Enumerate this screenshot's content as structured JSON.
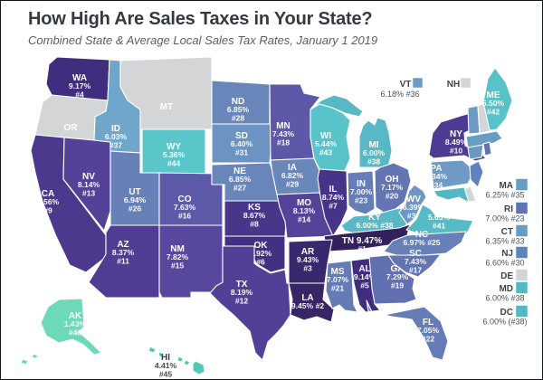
{
  "header": {
    "title": "How High Are Sales Taxes in Your State?",
    "subtitle": "Combined State & Average Local Sales Tax Rates, January 1 2019"
  },
  "palette": {
    "background": "#ffffff",
    "frame_border": "#14171a",
    "title_color": "#343a40",
    "subtitle_color": "#5a6066",
    "no_tax_gray": "#d3d5d6",
    "map_label_light": "#ffffff",
    "map_label_dark": "#3d4449",
    "state_border": "#ffffff"
  },
  "chart_data": {
    "type": "choropleth",
    "metric": "Combined state & average local sales tax rate",
    "date": "January 1 2019",
    "color_scale_hint": "dark purple = highest rate, teal = lowest, gray = no state sales tax",
    "states": [
      {
        "abbr": "WA",
        "rate_pct": 9.17,
        "rank": 4,
        "color": "#412d7e",
        "map_label": [
          "WA",
          "9.17%",
          "#4"
        ],
        "label_color": "light"
      },
      {
        "abbr": "OR",
        "rate_pct": null,
        "rank": null,
        "color": "#d3d5d6",
        "map_label": [
          "OR"
        ],
        "label_color": "light"
      },
      {
        "abbr": "CA",
        "rate_pct": 8.56,
        "rank": 9,
        "color": "#4c388d",
        "map_label": [
          "CA",
          "8.56%",
          "#9"
        ],
        "label_color": "light"
      },
      {
        "abbr": "NV",
        "rate_pct": 8.14,
        "rank": 13,
        "color": "#534298",
        "map_label": [
          "NV",
          "8.14%",
          "#13"
        ],
        "label_color": "light"
      },
      {
        "abbr": "ID",
        "rate_pct": 6.03,
        "rank": 37,
        "color": "#71a6cb",
        "map_label": [
          "ID",
          "6.03%",
          "#37"
        ],
        "label_color": "light"
      },
      {
        "abbr": "MT",
        "rate_pct": null,
        "rank": null,
        "color": "#d3d5d6",
        "map_label": [
          "MT"
        ],
        "label_color": "light"
      },
      {
        "abbr": "WY",
        "rate_pct": 5.36,
        "rank": 44,
        "color": "#59c6ca",
        "map_label": [
          "WY",
          "5.36%",
          "#44"
        ],
        "label_color": "light"
      },
      {
        "abbr": "UT",
        "rate_pct": 6.94,
        "rank": 26,
        "color": "#6781b8",
        "map_label": [
          "UT",
          "6.94%",
          "#26"
        ],
        "label_color": "light"
      },
      {
        "abbr": "CO",
        "rate_pct": 7.63,
        "rank": 16,
        "color": "#5c5aa9",
        "map_label": [
          "CO",
          "7.63%",
          "#16"
        ],
        "label_color": "light"
      },
      {
        "abbr": "AZ",
        "rate_pct": 8.37,
        "rank": 11,
        "color": "#503d93",
        "map_label": [
          "AZ",
          "8.37%",
          "#11"
        ],
        "label_color": "light"
      },
      {
        "abbr": "NM",
        "rate_pct": 7.82,
        "rank": 15,
        "color": "#58489d",
        "map_label": [
          "NM",
          "7.82%",
          "#15"
        ],
        "label_color": "light"
      },
      {
        "abbr": "ND",
        "rate_pct": 6.85,
        "rank": 28,
        "color": "#6986ba",
        "map_label": [
          "ND",
          "6.85%",
          "#28"
        ],
        "label_color": "light"
      },
      {
        "abbr": "SD",
        "rate_pct": 6.4,
        "rank": 31,
        "color": "#6d93c2",
        "map_label": [
          "SD",
          "6.40%",
          "#31"
        ],
        "label_color": "light"
      },
      {
        "abbr": "NE",
        "rate_pct": 6.85,
        "rank": 27,
        "color": "#6986ba",
        "map_label": [
          "NE",
          "6.85%",
          "#27"
        ],
        "label_color": "light"
      },
      {
        "abbr": "KS",
        "rate_pct": 8.67,
        "rank": 8,
        "color": "#49368a",
        "map_label": [
          "KS",
          "8.67%",
          "#8"
        ],
        "label_color": "light"
      },
      {
        "abbr": "OK",
        "rate_pct": 8.92,
        "rank": 6,
        "color": "#443082",
        "map_label": [
          "OK",
          "8.92%",
          "#6"
        ],
        "label_color": "light"
      },
      {
        "abbr": "TX",
        "rate_pct": 8.19,
        "rank": 12,
        "color": "#524097",
        "map_label": [
          "TX",
          "8.19%",
          "#12"
        ],
        "label_color": "light"
      },
      {
        "abbr": "MN",
        "rate_pct": 7.43,
        "rank": 18,
        "color": "#5d58a8",
        "map_label": [
          "MN",
          "7.43%",
          "#18"
        ],
        "label_color": "light"
      },
      {
        "abbr": "WI",
        "rate_pct": 5.44,
        "rank": 43,
        "color": "#58c4c9",
        "map_label": [
          "WI",
          "5.44%",
          "#43"
        ],
        "label_color": "light"
      },
      {
        "abbr": "IA",
        "rate_pct": 6.82,
        "rank": 29,
        "color": "#6987bb",
        "map_label": [
          "IA",
          "6.82%",
          "#29"
        ],
        "label_color": "light"
      },
      {
        "abbr": "MO",
        "rate_pct": 8.13,
        "rank": 14,
        "color": "#544399",
        "map_label": [
          "MO",
          "8.13%",
          "#14"
        ],
        "label_color": "light"
      },
      {
        "abbr": "IL",
        "rate_pct": 8.74,
        "rank": 7,
        "color": "#473387",
        "map_label": [
          "IL",
          "8.74%",
          "#7"
        ],
        "label_color": "light"
      },
      {
        "abbr": "MI",
        "rate_pct": 6.0,
        "rank": 38,
        "color": "#58b8c5",
        "map_label": [
          "MI",
          "6.00%",
          "#38"
        ],
        "label_color": "light"
      },
      {
        "abbr": "IN",
        "rate_pct": 7.0,
        "rank": 23,
        "color": "#667eb7",
        "map_label": [
          "IN",
          "7.00%",
          "#23"
        ],
        "label_color": "light"
      },
      {
        "abbr": "OH",
        "rate_pct": 7.17,
        "rank": 20,
        "color": "#6375b3",
        "map_label": [
          "OH",
          "7.17%",
          "#20"
        ],
        "label_color": "light"
      },
      {
        "abbr": "KY",
        "rate_pct": 6.0,
        "rank": 38,
        "color": "#58b8c5",
        "map_label": [
          "KY",
          "6.00% #38"
        ],
        "label_color": "light"
      },
      {
        "abbr": "TN",
        "rate_pct": 9.47,
        "rank": 1,
        "color": "#33215c",
        "map_label": [
          "TN 9.47%",
          "#1"
        ],
        "label_color": "light"
      },
      {
        "abbr": "AR",
        "rate_pct": 9.43,
        "rank": 3,
        "color": "#3a286e",
        "map_label": [
          "AR",
          "9.43%",
          "#3"
        ],
        "label_color": "light"
      },
      {
        "abbr": "LA",
        "rate_pct": 9.45,
        "rank": 2,
        "color": "#372566",
        "map_label": [
          "LA",
          "9.45% #2"
        ],
        "label_color": "light"
      },
      {
        "abbr": "MS",
        "rate_pct": 7.07,
        "rank": 21,
        "color": "#657bb6",
        "map_label": [
          "MS",
          "7.07%",
          "#21"
        ],
        "label_color": "light"
      },
      {
        "abbr": "AL",
        "rate_pct": 9.14,
        "rank": 5,
        "color": "#412d7e",
        "map_label": [
          "AL",
          "9.14%",
          "#5"
        ],
        "label_color": "light"
      },
      {
        "abbr": "GA",
        "rate_pct": 7.29,
        "rank": 19,
        "color": "#6270b1",
        "map_label": [
          "GA",
          "7.29%",
          "#19"
        ],
        "label_color": "light"
      },
      {
        "abbr": "WV",
        "rate_pct": 6.39,
        "rank": 32,
        "color": "#6d98c4",
        "map_label": [
          "WV",
          "6.39%",
          "#32"
        ],
        "label_color": "light"
      },
      {
        "abbr": "VA",
        "rate_pct": 5.65,
        "rank": 41,
        "color": "#55bcc5",
        "map_label": [
          "VA",
          "5.65%",
          "#41"
        ],
        "label_color": "light"
      },
      {
        "abbr": "NC",
        "rate_pct": 6.97,
        "rank": 25,
        "color": "#6780b8",
        "map_label": [
          "NC",
          "6.97% #25"
        ],
        "label_color": "light"
      },
      {
        "abbr": "SC",
        "rate_pct": 7.43,
        "rank": 17,
        "color": "#6374b3",
        "map_label": [
          "SC",
          "7.43%",
          "#17"
        ],
        "label_color": "light"
      },
      {
        "abbr": "FL",
        "rate_pct": 7.05,
        "rank": 22,
        "color": "#657cb6",
        "map_label": [
          "FL",
          "7.05%",
          "#22"
        ],
        "label_color": "light"
      },
      {
        "abbr": "NY",
        "rate_pct": 8.49,
        "rank": 10,
        "color": "#4e3a90",
        "map_label": [
          "NY",
          "8.49%",
          "#10"
        ],
        "label_color": "light"
      },
      {
        "abbr": "PA",
        "rate_pct": 6.34,
        "rank": 34,
        "color": "#6e9ac5",
        "map_label": [
          "PA",
          "6.34%",
          "#34"
        ],
        "label_color": "light"
      },
      {
        "abbr": "VT",
        "rate_pct": 6.18,
        "rank": 36,
        "color": "#6d9ac3",
        "map_label": null,
        "label_color": "light",
        "legend_group": "top",
        "legend_label": "VT",
        "legend_value": "6.18% #36"
      },
      {
        "abbr": "NH",
        "rate_pct": null,
        "rank": null,
        "color": "#d3d5d6",
        "map_label": null,
        "label_color": "light",
        "legend_group": "top",
        "legend_label": "NH",
        "legend_value": null
      },
      {
        "abbr": "ME",
        "rate_pct": 5.5,
        "rank": 42,
        "color": "#57c2c8",
        "map_label": [
          "ME",
          "5.50%",
          "#42"
        ],
        "label_color": "light"
      },
      {
        "abbr": "MA",
        "rate_pct": 6.25,
        "rank": 35,
        "color": "#679cc5",
        "map_label": null,
        "label_color": "light",
        "legend_group": "right",
        "legend_label": "MA",
        "legend_value": "6.25% #35"
      },
      {
        "abbr": "CT",
        "rate_pct": 6.35,
        "rank": 33,
        "color": "#689ac4",
        "map_label": null,
        "label_color": "light",
        "legend_group": "right",
        "legend_label": "CT",
        "legend_value": "6.35% #33"
      },
      {
        "abbr": "RI",
        "rate_pct": 7.0,
        "rank": 23,
        "color": "#5f74b1",
        "map_label": null,
        "label_color": "light",
        "legend_group": "right",
        "legend_label": "RI",
        "legend_value": "7.00% #23"
      },
      {
        "abbr": "NJ",
        "rate_pct": 6.6,
        "rank": 30,
        "color": "#5e83bb",
        "map_label": null,
        "label_color": "light",
        "legend_group": "right",
        "legend_label": "NJ",
        "legend_value": "6.60% #30"
      },
      {
        "abbr": "DE",
        "rate_pct": null,
        "rank": null,
        "color": "#d3d5d6",
        "map_label": null,
        "label_color": "light",
        "legend_group": "right",
        "legend_label": "DE",
        "legend_value": null
      },
      {
        "abbr": "MD",
        "rate_pct": 6.0,
        "rank": 38,
        "color": "#52b9c4",
        "map_label": null,
        "label_color": "light",
        "legend_group": "right",
        "legend_label": "MD",
        "legend_value": "6.00% #38"
      },
      {
        "abbr": "DC",
        "rate_pct": 6.0,
        "rank": 38,
        "color": "#52b9c4",
        "map_label": null,
        "label_color": "light",
        "legend_group": "right",
        "legend_label": "DC",
        "legend_value": "6.00% (#38)"
      },
      {
        "abbr": "AK",
        "rate_pct": 1.43,
        "rank": 46,
        "color": "#6ed9b9",
        "map_label": [
          "AK",
          "1.43%",
          "#46"
        ],
        "label_color": "light"
      },
      {
        "abbr": "HI",
        "rate_pct": 4.41,
        "rank": 45,
        "color": "#52c9b8",
        "map_label": [
          "HI",
          "4.41%",
          "#45"
        ],
        "label_color": "dark"
      }
    ]
  }
}
